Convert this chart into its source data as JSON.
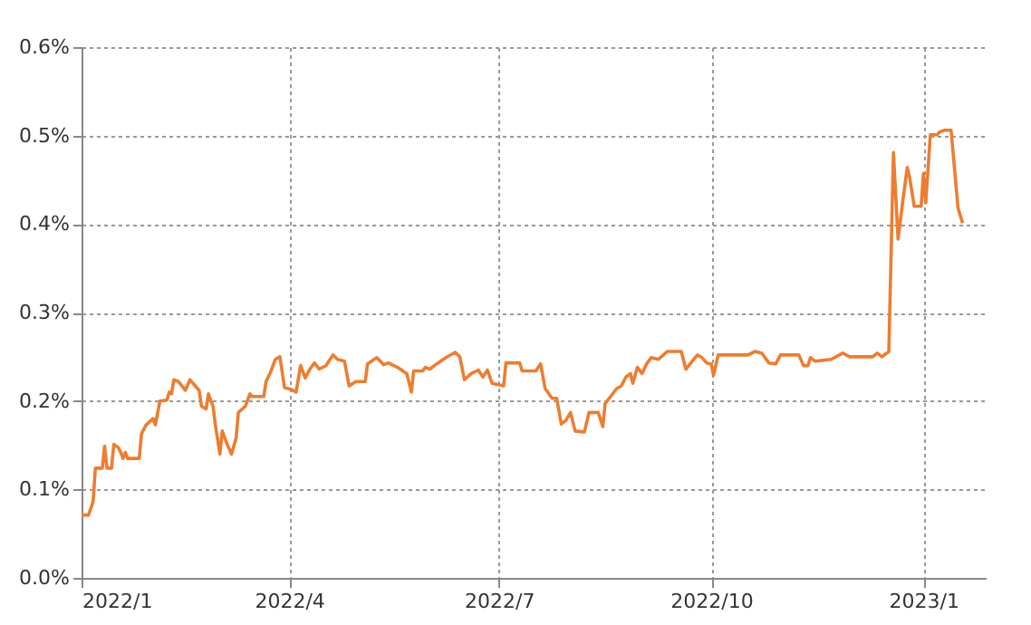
{
  "chart_data": {
    "type": "line",
    "x": [
      "2022-01-01",
      "2022-01-04",
      "2022-01-06",
      "2022-01-07",
      "2022-01-10",
      "2022-01-11",
      "2022-01-12",
      "2022-01-14",
      "2022-01-15",
      "2022-01-17",
      "2022-01-18",
      "2022-01-19",
      "2022-01-20",
      "2022-01-21",
      "2022-01-26",
      "2022-01-27",
      "2022-01-29",
      "2022-02-01",
      "2022-02-02",
      "2022-02-04",
      "2022-02-07",
      "2022-02-08",
      "2022-02-09",
      "2022-02-10",
      "2022-02-12",
      "2022-02-15",
      "2022-02-17",
      "2022-02-21",
      "2022-02-22",
      "2022-02-24",
      "2022-02-25",
      "2022-02-27",
      "2022-02-28",
      "2022-03-02",
      "2022-03-03",
      "2022-03-05",
      "2022-03-07",
      "2022-03-09",
      "2022-03-10",
      "2022-03-13",
      "2022-03-15",
      "2022-03-16",
      "2022-03-21",
      "2022-03-22",
      "2022-03-24",
      "2022-03-26",
      "2022-03-28",
      "2022-03-30",
      "2022-04-02",
      "2022-04-04",
      "2022-04-06",
      "2022-04-08",
      "2022-04-10",
      "2022-04-12",
      "2022-04-14",
      "2022-04-17",
      "2022-04-20",
      "2022-04-22",
      "2022-04-25",
      "2022-04-27",
      "2022-04-30",
      "2022-05-04",
      "2022-05-05",
      "2022-05-09",
      "2022-05-12",
      "2022-05-14",
      "2022-05-18",
      "2022-05-22",
      "2022-05-24",
      "2022-05-25",
      "2022-05-29",
      "2022-05-30",
      "2022-06-01",
      "2022-06-04",
      "2022-06-08",
      "2022-06-12",
      "2022-06-14",
      "2022-06-16",
      "2022-06-19",
      "2022-06-22",
      "2022-06-24",
      "2022-06-26",
      "2022-06-28",
      "2022-07-03",
      "2022-07-04",
      "2022-07-10",
      "2022-07-11",
      "2022-07-17",
      "2022-07-19",
      "2022-07-21",
      "2022-07-24",
      "2022-07-26",
      "2022-07-28",
      "2022-07-30",
      "2022-08-01",
      "2022-08-03",
      "2022-08-07",
      "2022-08-09",
      "2022-08-13",
      "2022-08-15",
      "2022-08-16",
      "2022-08-21",
      "2022-08-23",
      "2022-08-25",
      "2022-08-27",
      "2022-08-28",
      "2022-08-30",
      "2022-09-01",
      "2022-09-03",
      "2022-09-05",
      "2022-09-08",
      "2022-09-12",
      "2022-09-18",
      "2022-09-20",
      "2022-09-25",
      "2022-09-27",
      "2022-09-29",
      "2022-10-01",
      "2022-10-02",
      "2022-10-04",
      "2022-10-17",
      "2022-10-20",
      "2022-10-23",
      "2022-10-26",
      "2022-10-29",
      "2022-10-31",
      "2022-11-08",
      "2022-11-10",
      "2022-11-12",
      "2022-11-13",
      "2022-11-15",
      "2022-11-22",
      "2022-11-27",
      "2022-11-30",
      "2022-12-03",
      "2022-12-10",
      "2022-12-12",
      "2022-12-14",
      "2022-12-17",
      "2022-12-19",
      "2022-12-21",
      "2022-12-23",
      "2022-12-25",
      "2022-12-26",
      "2022-12-28",
      "2022-12-31",
      "2023-01-01",
      "2023-01-02",
      "2023-01-04",
      "2023-01-07",
      "2023-01-08",
      "2023-01-10",
      "2023-01-13",
      "2023-01-16",
      "2023-01-18"
    ],
    "series": [
      {
        "color": "#ed7d31",
        "values": [
          0.071,
          0.071,
          0.086,
          0.124,
          0.124,
          0.149,
          0.124,
          0.124,
          0.151,
          0.147,
          0.142,
          0.135,
          0.142,
          0.135,
          0.135,
          0.163,
          0.173,
          0.18,
          0.173,
          0.2,
          0.201,
          0.21,
          0.208,
          0.224,
          0.222,
          0.212,
          0.224,
          0.212,
          0.194,
          0.191,
          0.208,
          0.194,
          0.173,
          0.14,
          0.166,
          0.152,
          0.14,
          0.158,
          0.187,
          0.194,
          0.208,
          0.205,
          0.205,
          0.222,
          0.233,
          0.247,
          0.25,
          0.215,
          0.213,
          0.21,
          0.24,
          0.226,
          0.236,
          0.243,
          0.236,
          0.24,
          0.252,
          0.247,
          0.245,
          0.217,
          0.222,
          0.222,
          0.242,
          0.249,
          0.241,
          0.243,
          0.238,
          0.231,
          0.21,
          0.234,
          0.234,
          0.238,
          0.236,
          0.242,
          0.249,
          0.255,
          0.25,
          0.224,
          0.231,
          0.235,
          0.227,
          0.235,
          0.22,
          0.217,
          0.243,
          0.243,
          0.234,
          0.234,
          0.242,
          0.214,
          0.203,
          0.203,
          0.174,
          0.178,
          0.187,
          0.166,
          0.165,
          0.187,
          0.187,
          0.171,
          0.197,
          0.214,
          0.217,
          0.227,
          0.231,
          0.22,
          0.238,
          0.231,
          0.242,
          0.249,
          0.247,
          0.256,
          0.256,
          0.236,
          0.252,
          0.249,
          0.243,
          0.242,
          0.229,
          0.252,
          0.252,
          0.256,
          0.254,
          0.243,
          0.242,
          0.252,
          0.252,
          0.24,
          0.24,
          0.249,
          0.245,
          0.247,
          0.254,
          0.25,
          0.25,
          0.25,
          0.254,
          0.25,
          0.256,
          0.481,
          0.383,
          0.425,
          0.464,
          0.453,
          0.42,
          0.42,
          0.457,
          0.424,
          0.501,
          0.501,
          0.504,
          0.506,
          0.506,
          0.418,
          0.401
        ]
      }
    ],
    "xlim": [
      "2022-01-01",
      "2023-01-28"
    ],
    "xticks": [
      {
        "value": "2022-01-01",
        "label": "2022/1"
      },
      {
        "value": "2022-04-01",
        "label": "2022/4"
      },
      {
        "value": "2022-07-01",
        "label": "2022/7"
      },
      {
        "value": "2022-10-01",
        "label": "2022/10"
      },
      {
        "value": "2023-01-01",
        "label": "2023/1"
      }
    ],
    "ylim": [
      0,
      0.6
    ],
    "yticks": [
      {
        "value": 0,
        "label": "0.0%"
      },
      {
        "value": 0.1,
        "label": "0.1%"
      },
      {
        "value": 0.2,
        "label": "0.2%"
      },
      {
        "value": 0.3,
        "label": "0.3%"
      },
      {
        "value": 0.4,
        "label": "0.4%"
      },
      {
        "value": 0.5,
        "label": "0.5%"
      },
      {
        "value": 0.6,
        "label": "0.6%"
      }
    ],
    "grid": true,
    "marker": "none",
    "line_style": "solid"
  }
}
